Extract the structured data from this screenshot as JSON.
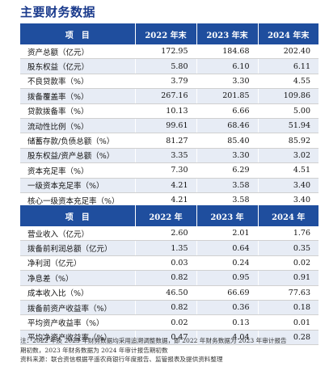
{
  "title": "主要财务数据",
  "table1": {
    "header": [
      "项　目",
      "2022 年末",
      "2023 年末",
      "2024 年末"
    ],
    "rows": [
      {
        "label": "资产总额（亿元）",
        "v": [
          "172.95",
          "184.68",
          "202.40"
        ]
      },
      {
        "label": "股东权益（亿元）",
        "v": [
          "5.80",
          "6.10",
          "6.11"
        ]
      },
      {
        "label": "不良贷款率（%）",
        "v": [
          "3.79",
          "3.30",
          "4.55"
        ]
      },
      {
        "label": "拨备覆盖率（%）",
        "v": [
          "267.16",
          "201.85",
          "109.86"
        ]
      },
      {
        "label": "贷款拨备率（%）",
        "v": [
          "10.13",
          "6.66",
          "5.00"
        ]
      },
      {
        "label": "流动性比例（%）",
        "v": [
          "99.61",
          "68.46",
          "51.94"
        ]
      },
      {
        "label": "储蓄存款/负债总额（%）",
        "v": [
          "81.27",
          "85.40",
          "85.92"
        ]
      },
      {
        "label": "股东权益/资产总额（%）",
        "v": [
          "3.35",
          "3.30",
          "3.02"
        ]
      },
      {
        "label": "资本充足率（%）",
        "v": [
          "7.30",
          "6.29",
          "4.51"
        ]
      },
      {
        "label": "一级资本充足率（%）",
        "v": [
          "4.21",
          "3.58",
          "3.40"
        ]
      },
      {
        "label": "核心一级资本充足率（%）",
        "v": [
          "4.21",
          "3.58",
          "3.40"
        ]
      }
    ]
  },
  "table2": {
    "header": [
      "项　目",
      "2022 年",
      "2023 年",
      "2024 年"
    ],
    "rows": [
      {
        "label": "营业收入（亿元）",
        "v": [
          "2.60",
          "2.01",
          "1.76"
        ]
      },
      {
        "label": "拨备前利润总额（亿元）",
        "v": [
          "1.35",
          "0.64",
          "0.35"
        ]
      },
      {
        "label": "净利润（亿元）",
        "v": [
          "0.03",
          "0.24",
          "0.02"
        ]
      },
      {
        "label": "净息差（%）",
        "v": [
          "0.82",
          "0.95",
          "0.91"
        ]
      },
      {
        "label": "成本收入比（%）",
        "v": [
          "46.50",
          "66.69",
          "77.63"
        ]
      },
      {
        "label": "拨备前资产收益率（%）",
        "v": [
          "0.82",
          "0.36",
          "0.18"
        ]
      },
      {
        "label": "平均资产收益率（%）",
        "v": [
          "0.02",
          "0.13",
          "0.01"
        ]
      },
      {
        "label": "平均净资产收益率（%）",
        "v": [
          "0.47",
          "4.04",
          "0.28"
        ]
      }
    ]
  },
  "notes": [
    "注：2022 年及 2023 年财务数据均采用追溯调整数据，即 2022 年财务数据为 2023 年审计报告",
    "期初数，2023 年财务数据为 2024 年审计报告期初数",
    "资料来源：联合资信根据平遥农商银行年度报告、监管报表及提供资料整理"
  ]
}
